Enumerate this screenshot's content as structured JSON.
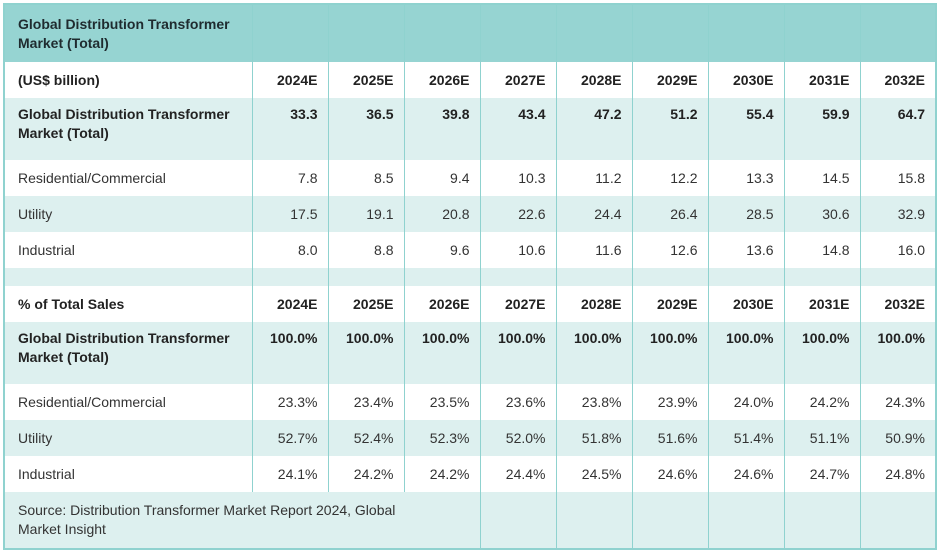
{
  "title": "Global Distribution Transformer Market (Total)",
  "section1": {
    "unit_label": "(US$ billion)",
    "years": [
      "2024E",
      "2025E",
      "2026E",
      "2027E",
      "2028E",
      "2029E",
      "2030E",
      "2031E",
      "2032E"
    ],
    "rows": [
      {
        "label": "Global Distribution Transformer Market (Total)",
        "values": [
          "33.3",
          "36.5",
          "39.8",
          "43.4",
          "47.2",
          "51.2",
          "55.4",
          "59.9",
          "64.7"
        ]
      },
      {
        "label": "Residential/Commercial",
        "values": [
          "7.8",
          "8.5",
          "9.4",
          "10.3",
          "11.2",
          "12.2",
          "13.3",
          "14.5",
          "15.8"
        ]
      },
      {
        "label": "Utility",
        "values": [
          "17.5",
          "19.1",
          "20.8",
          "22.6",
          "24.4",
          "26.4",
          "28.5",
          "30.6",
          "32.9"
        ]
      },
      {
        "label": "Industrial",
        "values": [
          "8.0",
          "8.8",
          "9.6",
          "10.6",
          "11.6",
          "12.6",
          "13.6",
          "14.8",
          "16.0"
        ]
      }
    ]
  },
  "section2": {
    "unit_label": "% of Total Sales",
    "years": [
      "2024E",
      "2025E",
      "2026E",
      "2027E",
      "2028E",
      "2029E",
      "2030E",
      "2031E",
      "2032E"
    ],
    "rows": [
      {
        "label": "Global Distribution Transformer Market (Total)",
        "values": [
          "100.0%",
          "100.0%",
          "100.0%",
          "100.0%",
          "100.0%",
          "100.0%",
          "100.0%",
          "100.0%",
          "100.0%"
        ]
      },
      {
        "label": "Residential/Commercial",
        "values": [
          "23.3%",
          "23.4%",
          "23.5%",
          "23.6%",
          "23.8%",
          "23.9%",
          "24.0%",
          "24.2%",
          "24.3%"
        ]
      },
      {
        "label": "Utility",
        "values": [
          "52.7%",
          "52.4%",
          "52.3%",
          "52.0%",
          "51.8%",
          "51.6%",
          "51.4%",
          "51.1%",
          "50.9%"
        ]
      },
      {
        "label": "Industrial",
        "values": [
          "24.1%",
          "24.2%",
          "24.2%",
          "24.4%",
          "24.5%",
          "24.6%",
          "24.6%",
          "24.7%",
          "24.8%"
        ]
      }
    ]
  },
  "source": "Source: Distribution Transformer Market Report 2024, Global Market Insight"
}
